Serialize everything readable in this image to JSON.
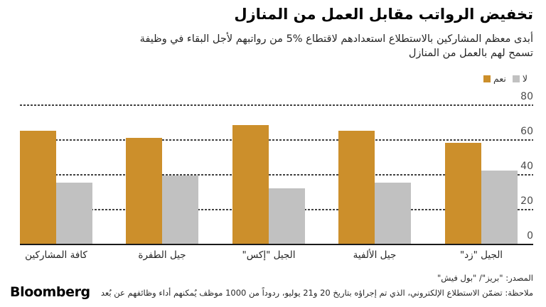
{
  "header": {
    "title": "تخفيض الرواتب مقابل العمل من المنازل",
    "subtitle_line1": "أبدى معظم المشاركين بالاستطلاع استعدادهم لاقتطاع %5 من رواتبهم لأجل البقاء في وظيفة",
    "subtitle_line2": "تسمح لهم بالعمل من المنازل"
  },
  "chart_data": {
    "type": "bar",
    "title": "تخفيض الرواتب مقابل العمل من المنازل",
    "categories": [
      "كافة المشاركين",
      "جيل الطفرة",
      "الجيل \"إكس\"",
      "جيل الألفية",
      "الجيل \"زد\""
    ],
    "series": [
      {
        "name": "نعم",
        "color": "#CC8F2B",
        "values": [
          65,
          61,
          68,
          65,
          58
        ]
      },
      {
        "name": "لا",
        "color": "#C1C1C1",
        "values": [
          35,
          39,
          32,
          35,
          42
        ]
      }
    ],
    "ylim": [
      0,
      80
    ],
    "yticks": [
      0,
      20,
      40,
      60,
      80
    ],
    "grid": "horizontal-dashed",
    "legend_position": "top-right",
    "rtl": true
  },
  "footer": {
    "source": "المصدر: \"بريز\"/ \"بول فيش\"",
    "note": "ملاحظة: تضمّن الاستطلاع الإلكتروني، الذي تم إجراؤه بتاريخ 20 و21 يوليو، ردوداً من 1000 موظف يُمكنهم أداء وظائفهم عن بُعد",
    "brand": "Bloomberg"
  }
}
